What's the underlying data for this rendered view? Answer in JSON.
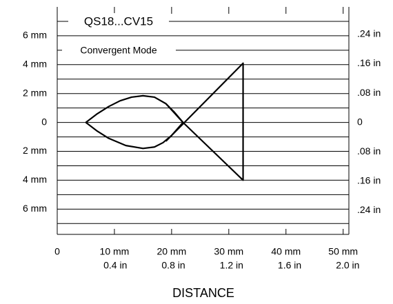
{
  "chart_data": {
    "type": "line",
    "title": "QS18...CV15",
    "subtitle": "Convergent Mode",
    "x_label": "DISTANCE",
    "xlim": [
      0,
      51
    ],
    "xticks": [
      0,
      {
        "value": 10,
        "label": "10 mm"
      },
      {
        "value": 20,
        "label": "20 mm"
      },
      {
        "value": 30,
        "label": "30 mm"
      },
      {
        "value": 40,
        "label": "40 mm"
      },
      {
        "value": 50,
        "label": "50 mm"
      }
    ],
    "x2lim": [
      0,
      2.008
    ],
    "x2ticks": [
      {
        "value": 0.4,
        "label": "0.4 in"
      },
      {
        "value": 0.8,
        "label": "0.8 in"
      },
      {
        "value": 1.2,
        "label": "1.2 in"
      },
      {
        "value": 1.6,
        "label": "1.6 in"
      },
      {
        "value": 2.0,
        "label": "2.0 in"
      }
    ],
    "ylim": [
      -7.75,
      8
    ],
    "yticks": [
      {
        "value": 6,
        "label": "6 mm"
      },
      {
        "value": 4,
        "label": "4 mm"
      },
      {
        "value": 2,
        "label": "2 mm"
      },
      0,
      {
        "value": -2,
        "label": "2 mm"
      },
      {
        "value": -4,
        "label": "4 mm"
      },
      {
        "value": -6,
        "label": "6 mm"
      }
    ],
    "yminorticks": [
      -7,
      -6,
      -5,
      -4,
      -3,
      -2,
      -1,
      0,
      1,
      2,
      3,
      4,
      5,
      6,
      7
    ],
    "y2lim": [
      -0.305,
      0.315
    ],
    "y2ticks": [
      {
        "value": 0.24,
        "label": ".24 in"
      },
      {
        "value": 0.16,
        "label": ".16 in"
      },
      {
        "value": 0.08,
        "label": ".08 in"
      },
      0,
      {
        "value": -0.08,
        "label": ".08 in"
      },
      {
        "value": -0.16,
        "label": ".16 in"
      },
      {
        "value": -0.24,
        "label": ".24 in"
      }
    ],
    "grid": true,
    "color": "#000000",
    "series": [
      {
        "x": [
          5,
          7,
          9,
          11,
          13,
          15,
          17,
          19,
          20.5,
          22
        ],
        "values": [
          0,
          0.6,
          1.1,
          1.5,
          1.75,
          1.85,
          1.75,
          1.3,
          0.7,
          0
        ]
      },
      {
        "x": [
          5,
          7,
          9,
          12,
          15,
          17,
          18.5,
          20,
          22
        ],
        "values": [
          0,
          -0.6,
          -1.1,
          -1.6,
          -1.8,
          -1.7,
          -1.4,
          -0.9,
          0
        ]
      },
      {
        "x": [
          19,
          32.5,
          32.5,
          22,
          19
        ],
        "values": [
          -1.3,
          4.1,
          -4.0,
          0,
          1.3
        ]
      }
    ]
  }
}
